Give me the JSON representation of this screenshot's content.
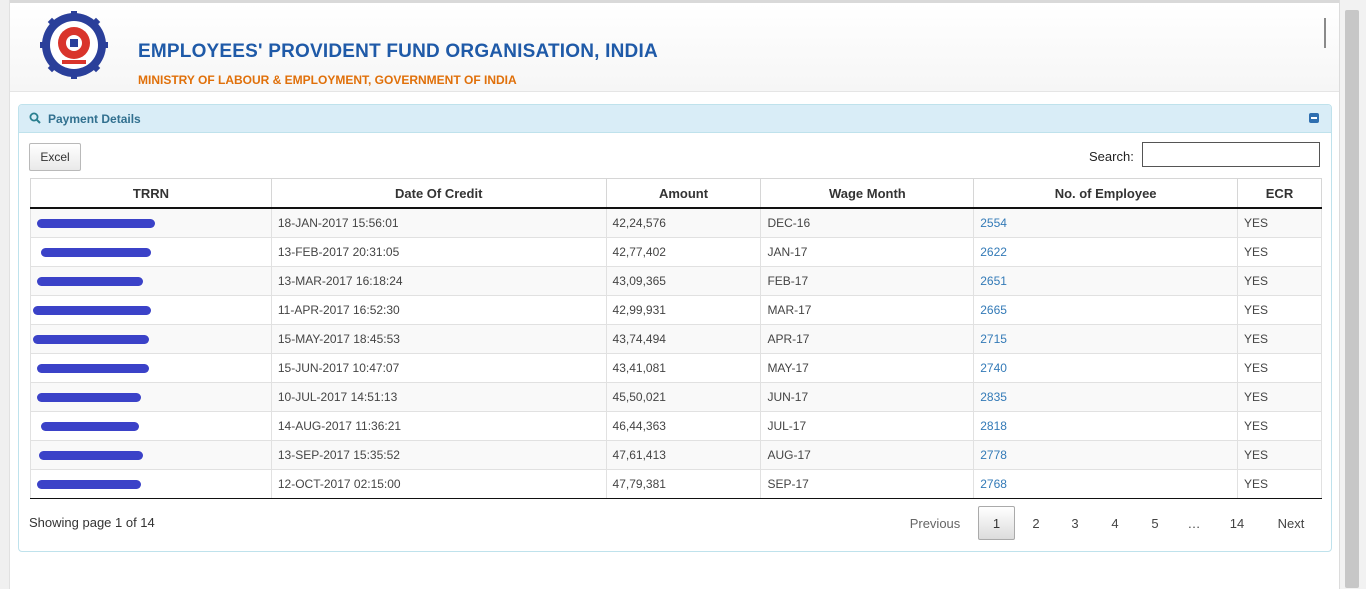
{
  "header": {
    "title": "EMPLOYEES' PROVIDENT FUND ORGANISATION, INDIA",
    "subtitle": "MINISTRY OF LABOUR & EMPLOYMENT, GOVERNMENT OF INDIA"
  },
  "panel": {
    "title": "Payment Details",
    "excel_label": "Excel",
    "search_label": "Search:",
    "search_value": ""
  },
  "table": {
    "columns": [
      "TRRN",
      "Date Of Credit",
      "Amount",
      "Wage Month",
      "No. of Employee",
      "ECR"
    ],
    "rows": [
      {
        "trrn": "",
        "date": "18-JAN-2017 15:56:01",
        "amount": "42,24,576",
        "wage_month": "DEC-16",
        "employees": "2554",
        "ecr": "YES"
      },
      {
        "trrn": "",
        "date": "13-FEB-2017 20:31:05",
        "amount": "42,77,402",
        "wage_month": "JAN-17",
        "employees": "2622",
        "ecr": "YES"
      },
      {
        "trrn": "",
        "date": "13-MAR-2017 16:18:24",
        "amount": "43,09,365",
        "wage_month": "FEB-17",
        "employees": "2651",
        "ecr": "YES"
      },
      {
        "trrn": "",
        "date": "11-APR-2017 16:52:30",
        "amount": "42,99,931",
        "wage_month": "MAR-17",
        "employees": "2665",
        "ecr": "YES"
      },
      {
        "trrn": "",
        "date": "15-MAY-2017 18:45:53",
        "amount": "43,74,494",
        "wage_month": "APR-17",
        "employees": "2715",
        "ecr": "YES"
      },
      {
        "trrn": "",
        "date": "15-JUN-2017 10:47:07",
        "amount": "43,41,081",
        "wage_month": "MAY-17",
        "employees": "2740",
        "ecr": "YES"
      },
      {
        "trrn": "",
        "date": "10-JUL-2017 14:51:13",
        "amount": "45,50,021",
        "wage_month": "JUN-17",
        "employees": "2835",
        "ecr": "YES"
      },
      {
        "trrn": "",
        "date": "14-AUG-2017 11:36:21",
        "amount": "46,44,363",
        "wage_month": "JUL-17",
        "employees": "2818",
        "ecr": "YES"
      },
      {
        "trrn": "",
        "date": "13-SEP-2017 15:35:52",
        "amount": "47,61,413",
        "wage_month": "AUG-17",
        "employees": "2778",
        "ecr": "YES"
      },
      {
        "trrn": "",
        "date": "12-OCT-2017 02:15:00",
        "amount": "47,79,381",
        "wage_month": "SEP-17",
        "employees": "2768",
        "ecr": "YES"
      }
    ]
  },
  "footer": {
    "showing_text": "Showing page 1 of 14",
    "previous_label": "Previous",
    "next_label": "Next",
    "pages": [
      "1",
      "2",
      "3",
      "4",
      "5",
      "…",
      "14"
    ],
    "current_page": "1"
  },
  "colors": {
    "title_blue": "#1f5aa8",
    "subtitle_orange": "#e0700a",
    "link_blue": "#337ab7",
    "panel_header": "#d9edf7",
    "redaction_blue": "#3b42c8"
  },
  "icons": [
    "epfo-logo-icon",
    "search-icon",
    "collapse-icon"
  ]
}
